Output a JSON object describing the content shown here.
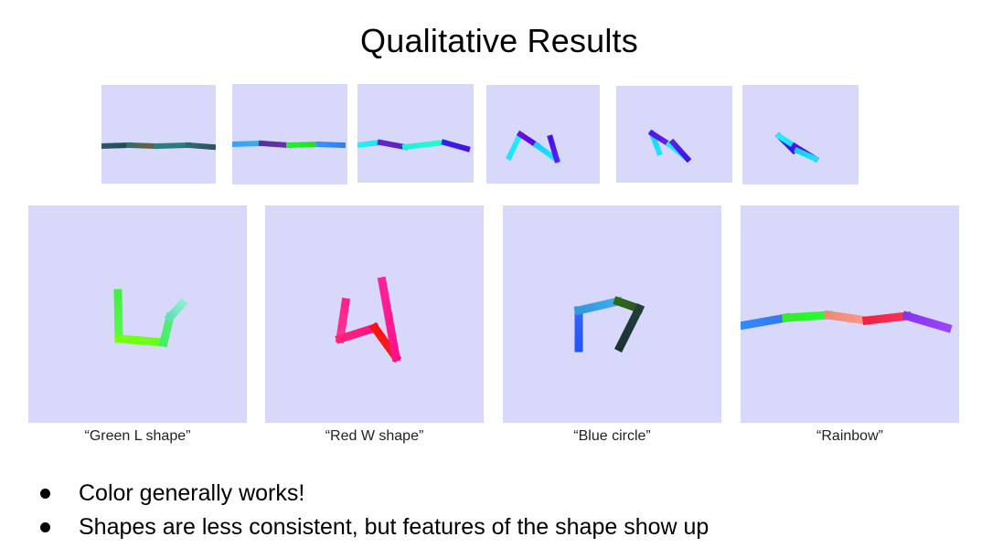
{
  "slide": {
    "title": "Qualitative Results"
  },
  "top_row": [
    {
      "segments": [
        [
          "#335566",
          "#1a4a55"
        ],
        [
          "#2f6f6a",
          "#7a5a30"
        ],
        [
          "#2a7f80",
          "#2a7a80"
        ],
        [
          "#2f6a68",
          "#2a5560"
        ]
      ]
    },
    {
      "segments": [
        [
          "#3aa0ff",
          "#38b0e0"
        ],
        [
          "#5530a0",
          "#6a30b0"
        ],
        [
          "#22ee33",
          "#22dd22"
        ],
        [
          "#3a90ff",
          "#3380ee"
        ]
      ]
    },
    {
      "segments": [
        [
          "#22f0ff",
          "#22e0f0"
        ],
        [
          "#6622cc",
          "#5a22bb"
        ],
        [
          "#22eedd",
          "#22ffcc"
        ],
        [
          "#3322ee",
          "#4411dd"
        ]
      ]
    },
    {
      "segments": [
        [
          "#22e0ff",
          "#22f0ff"
        ],
        [
          "#6611dd",
          "#5500ee"
        ],
        [
          "#11d0ff",
          "#22e8ff"
        ],
        [
          "#5522ee",
          "#4411ee"
        ]
      ]
    },
    {
      "segments": [
        [
          "#22e0ff",
          "#11d8ff"
        ],
        [
          "#5511ee",
          "#6622dd"
        ],
        [
          "#22e8ff",
          "#11f0ee"
        ],
        [
          "#4411ee",
          "#5522dd"
        ]
      ]
    },
    {
      "segments": [
        [
          "#3311ee",
          "#4422dd"
        ],
        [
          "#22f0ff",
          "#11e0ff"
        ],
        [
          "#5511ee",
          "#4411cc"
        ],
        [
          "#22e0ff",
          "#11d0ee"
        ]
      ]
    }
  ],
  "bottom_row": [
    {
      "caption": "“Green L shape”",
      "segments": [
        [
          "#44ee44",
          "#55ff44"
        ],
        [
          "#77ff11",
          "#66ff22"
        ],
        [
          "#44ee66",
          "#55ee77"
        ],
        [
          "#66ddbb",
          "#88eecc"
        ]
      ]
    },
    {
      "caption": "“Red W shape”",
      "segments": [
        [
          "#ff2288",
          "#ff3399"
        ],
        [
          "#ff2277",
          "#ff1188"
        ],
        [
          "#ff1111",
          "#ee2222"
        ],
        [
          "#ff1188",
          "#ff2299"
        ]
      ]
    },
    {
      "caption": "“Blue circle”",
      "segments": [
        [
          "#2255ff",
          "#3366ff"
        ],
        [
          "#3399dd",
          "#44aaee"
        ],
        [
          "#2a6a1a",
          "#335522"
        ],
        [
          "#223f3a",
          "#1a3333"
        ]
      ]
    },
    {
      "caption": "“Rainbow”",
      "segments": [
        [
          "#3388ff",
          "#3377ee"
        ],
        [
          "#33ee22",
          "#22ff33"
        ],
        [
          "#ee8877",
          "#ff9988"
        ],
        [
          "#ee2244",
          "#ff3355"
        ],
        [
          "#8833ee",
          "#9944ff"
        ]
      ]
    }
  ],
  "bullets": [
    "Color generally works!",
    "Shapes are less consistent, but features of the shape show up"
  ]
}
